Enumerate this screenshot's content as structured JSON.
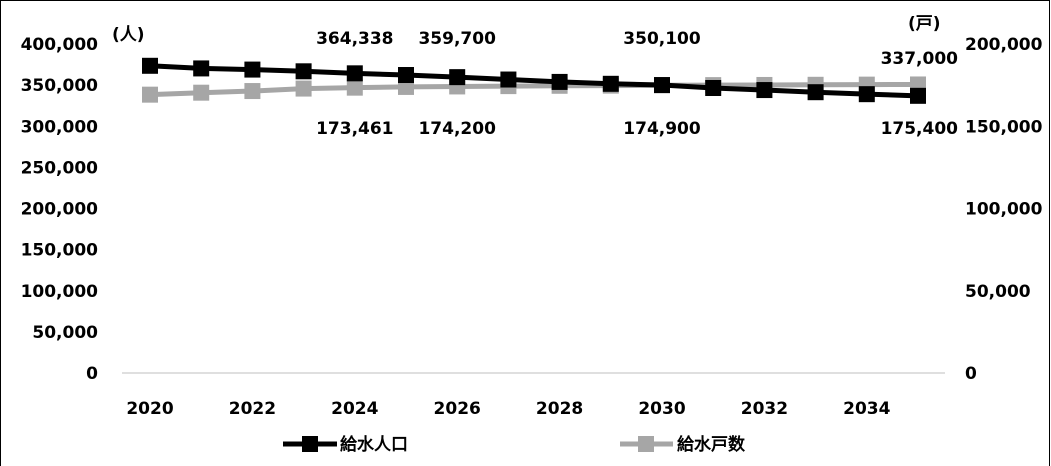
{
  "chart_data": {
    "type": "line",
    "x": [
      2020,
      2021,
      2022,
      2023,
      2024,
      2025,
      2026,
      2027,
      2028,
      2029,
      2030,
      2031,
      2032,
      2033,
      2034,
      2035
    ],
    "x_tick_labels": [
      "2020",
      "2022",
      "2024",
      "2026",
      "2028",
      "2030",
      "2032",
      "2034"
    ],
    "y_left": {
      "unit": "(人)",
      "range": [
        0,
        400000
      ],
      "tick_labels": [
        "0",
        "50,000",
        "100,000",
        "150,000",
        "200,000",
        "250,000",
        "300,000",
        "350,000",
        "400,000"
      ]
    },
    "y_right": {
      "unit": "(戸)",
      "range": [
        0,
        200000
      ],
      "tick_labels": [
        "0",
        "50,000",
        "100,000",
        "150,000",
        "200,000"
      ]
    },
    "series": [
      {
        "name": "給水人口",
        "axis": "left",
        "color": "#000000",
        "marker": "square",
        "values": [
          373500,
          370300,
          368900,
          366800,
          364338,
          362300,
          359700,
          356800,
          353900,
          351600,
          350100,
          346500,
          344000,
          341400,
          339000,
          337000
        ]
      },
      {
        "name": "給水戸数",
        "axis": "right",
        "color": "#a6a6a6",
        "marker": "square",
        "values": [
          169200,
          170400,
          171400,
          172900,
          173461,
          173900,
          174200,
          174400,
          174600,
          174700,
          174900,
          175000,
          175100,
          175200,
          175300,
          175400
        ]
      }
    ],
    "data_labels": [
      {
        "series": 0,
        "index": 4,
        "text": "364,338"
      },
      {
        "series": 0,
        "index": 6,
        "text": "359,700"
      },
      {
        "series": 0,
        "index": 10,
        "text": "350,100"
      },
      {
        "series": 0,
        "index": 15,
        "text": "337,000"
      },
      {
        "series": 1,
        "index": 4,
        "text": "173,461"
      },
      {
        "series": 1,
        "index": 6,
        "text": "174,200"
      },
      {
        "series": 1,
        "index": 10,
        "text": "174,900"
      },
      {
        "series": 1,
        "index": 15,
        "text": "175,400"
      }
    ],
    "grid": false,
    "legend": "bottom"
  }
}
